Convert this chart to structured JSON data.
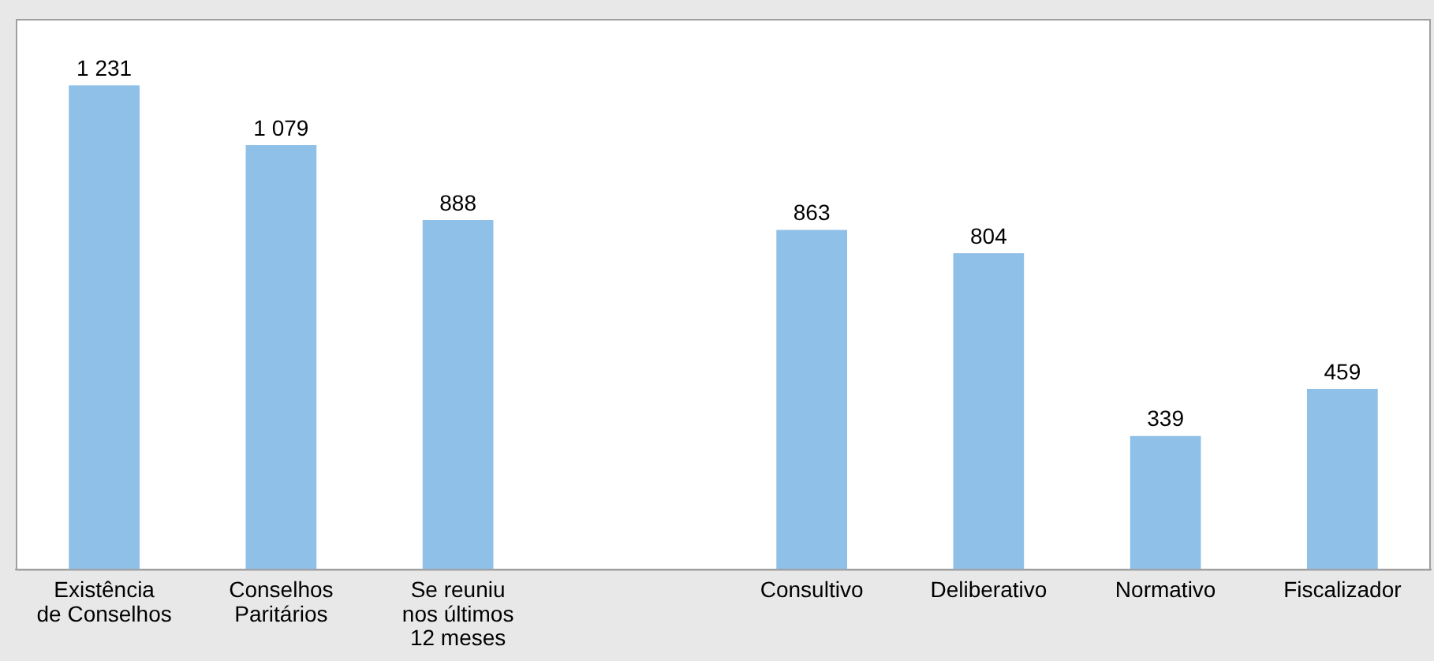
{
  "chart_data": {
    "type": "bar",
    "categories": [
      "Existência\nde Conselhos",
      "Conselhos\nParitários",
      "Se reuniu\nnos últimos\n12 meses",
      null,
      "Consultivo",
      "Deliberativo",
      "Normativo",
      "Fiscalizador"
    ],
    "values": [
      1231,
      1079,
      888,
      null,
      863,
      804,
      339,
      459
    ],
    "value_labels": [
      "1 231",
      "1 079",
      "888",
      null,
      "863",
      "804",
      "339",
      "459"
    ],
    "color": "#8fc0e8",
    "grid": false,
    "legend": false
  }
}
